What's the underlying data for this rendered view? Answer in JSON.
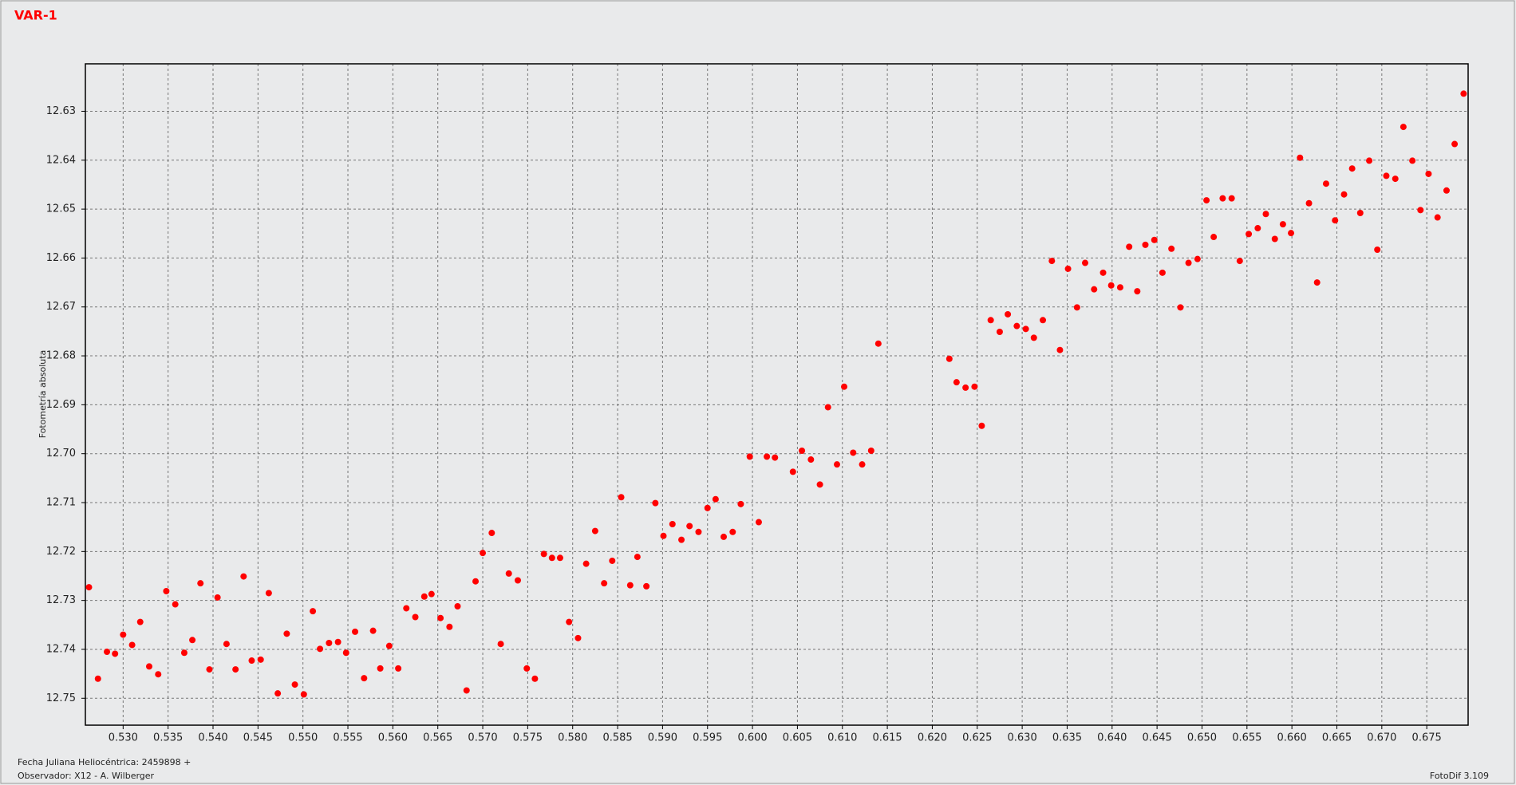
{
  "chart_data": {
    "type": "scatter",
    "title": "VAR-1",
    "y_label": "Fotometría absoluta",
    "x_label": "Fecha Juliana Heliocéntrica: 2459898 +",
    "observer": "Observador: X12 - A. Wilberger",
    "software": "FotoDif 3.109",
    "color": "#ff0000",
    "grid": true,
    "xlim": [
      0.5258,
      0.6796
    ],
    "ylim": [
      12.7555,
      12.6203
    ],
    "xticks": [
      {
        "value": 0.53,
        "label": "0.530"
      },
      0.535,
      {
        "value": 0.54,
        "label": "0.540"
      },
      0.545,
      {
        "value": 0.55,
        "label": "0.550"
      },
      0.555,
      {
        "value": 0.56,
        "label": "0.560"
      },
      0.565,
      {
        "value": 0.57,
        "label": "0.570"
      },
      0.575,
      {
        "value": 0.58,
        "label": "0.580"
      },
      0.585,
      {
        "value": 0.59,
        "label": "0.590"
      },
      0.595,
      {
        "value": 0.6,
        "label": "0.600"
      },
      0.605,
      {
        "value": 0.61,
        "label": "0.610"
      },
      0.615,
      {
        "value": 0.62,
        "label": "0.620"
      },
      0.625,
      {
        "value": 0.63,
        "label": "0.630"
      },
      0.635,
      {
        "value": 0.64,
        "label": "0.640"
      },
      0.645,
      {
        "value": 0.65,
        "label": "0.650"
      },
      0.655,
      {
        "value": 0.66,
        "label": "0.660"
      },
      0.665,
      {
        "value": 0.67,
        "label": "0.670"
      },
      0.675
    ],
    "yticks": [
      12.63,
      12.64,
      12.65,
      12.66,
      12.67,
      12.68,
      12.69,
      {
        "value": 12.7,
        "label": "12.70"
      },
      12.71,
      12.72,
      12.73,
      12.74,
      12.75
    ],
    "x": [
      0.5262,
      0.5272,
      0.5282,
      0.5291,
      0.53,
      0.531,
      0.5319,
      0.5329,
      0.5339,
      0.5348,
      0.5358,
      0.5368,
      0.5377,
      0.5386,
      0.5396,
      0.5405,
      0.5415,
      0.5425,
      0.5434,
      0.5443,
      0.5453,
      0.5462,
      0.5472,
      0.5482,
      0.5491,
      0.5501,
      0.5511,
      0.5519,
      0.5529,
      0.5539,
      0.5548,
      0.5558,
      0.5568,
      0.5578,
      0.5586,
      0.5596,
      0.5606,
      0.5615,
      0.5625,
      0.5635,
      0.5643,
      0.5653,
      0.5663,
      0.5672,
      0.5682,
      0.5692,
      0.57,
      0.571,
      0.572,
      0.5729,
      0.5739,
      0.5749,
      0.5758,
      0.5768,
      0.5777,
      0.5786,
      0.5796,
      0.5806,
      0.5815,
      0.5825,
      0.5835,
      0.5844,
      0.5854,
      0.5864,
      0.5872,
      0.5882,
      0.5892,
      0.5901,
      0.5911,
      0.5921,
      0.593,
      0.594,
      0.595,
      0.5959,
      0.5968,
      0.5978,
      0.5987,
      0.5997,
      0.6007,
      0.6016,
      0.6025,
      0.6045,
      0.6055,
      0.6065,
      0.6075,
      0.6084,
      0.6094,
      0.6102,
      0.6112,
      0.6122,
      0.6132,
      0.614,
      0.6219,
      0.6227,
      0.6237,
      0.6247,
      0.6255,
      0.6265,
      0.6275,
      0.6284,
      0.6294,
      0.6304,
      0.6313,
      0.6323,
      0.6333,
      0.6342,
      0.6351,
      0.6361,
      0.637,
      0.638,
      0.639,
      0.6399,
      0.6409,
      0.6419,
      0.6428,
      0.6437,
      0.6447,
      0.6456,
      0.6466,
      0.6476,
      0.6485,
      0.6495,
      0.6505,
      0.6513,
      0.6523,
      0.6533,
      0.6542,
      0.6552,
      0.6562,
      0.6571,
      0.6581,
      0.659,
      0.6599,
      0.6609,
      0.6619,
      0.6628,
      0.6638,
      0.6648,
      0.6658,
      0.6667,
      0.6676,
      0.6686,
      0.6695,
      0.6705,
      0.6715,
      0.6724,
      0.6734,
      0.6743,
      0.6752,
      0.6762,
      0.6772,
      0.6781,
      0.6791
    ],
    "values": [
      12.7273,
      12.746,
      12.7405,
      12.7409,
      12.737,
      12.7391,
      12.7344,
      12.7435,
      12.7451,
      12.7281,
      12.7308,
      12.7407,
      12.7381,
      12.7265,
      12.7441,
      12.7294,
      12.7389,
      12.7441,
      12.7251,
      12.7423,
      12.7421,
      12.7285,
      12.749,
      12.7368,
      12.7472,
      12.7492,
      12.7322,
      12.7399,
      12.7387,
      12.7385,
      12.7407,
      12.7364,
      12.7459,
      12.7362,
      12.7439,
      12.7393,
      12.7439,
      12.7316,
      12.7334,
      12.7292,
      12.7287,
      12.7336,
      12.7354,
      12.7312,
      12.7484,
      12.7261,
      12.7203,
      12.7162,
      12.7389,
      12.7245,
      12.7259,
      12.7439,
      12.746,
      12.7205,
      12.7213,
      12.7213,
      12.7344,
      12.7377,
      12.7225,
      12.7158,
      12.7265,
      12.7219,
      12.7089,
      12.7269,
      12.7211,
      12.7271,
      12.7101,
      12.7168,
      12.7144,
      12.7176,
      12.7148,
      12.716,
      12.7111,
      12.7093,
      12.717,
      12.716,
      12.7103,
      12.7006,
      12.714,
      12.7006,
      12.7008,
      12.7037,
      12.6994,
      12.7012,
      12.7063,
      12.6905,
      12.7022,
      12.6863,
      12.6998,
      12.7022,
      12.6994,
      12.6775,
      12.6806,
      12.6854,
      12.6865,
      12.6863,
      12.6943,
      12.6727,
      12.6751,
      12.6715,
      12.6739,
      12.6745,
      12.6763,
      12.6727,
      12.6606,
      12.6788,
      12.6622,
      12.6701,
      12.661,
      12.6664,
      12.663,
      12.6656,
      12.666,
      12.6577,
      12.6668,
      12.6573,
      12.6563,
      12.663,
      12.6581,
      12.6701,
      12.661,
      12.6602,
      12.6482,
      12.6557,
      12.6478,
      12.6478,
      12.6606,
      12.6551,
      12.6539,
      12.651,
      12.6561,
      12.6531,
      12.6549,
      12.6395,
      12.6488,
      12.665,
      12.6448,
      12.6523,
      12.647,
      12.6417,
      12.6508,
      12.6401,
      12.6583,
      12.6432,
      12.6438,
      12.6332,
      12.6401,
      12.6502,
      12.6428,
      12.6517,
      12.6462,
      12.6367,
      12.6264
    ]
  }
}
